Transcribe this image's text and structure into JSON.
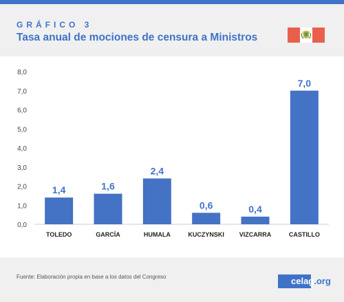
{
  "header": {
    "kicker": "GRÁFICO 3",
    "title": "Tasa anual de mociones de censura a Ministros"
  },
  "footer": {
    "source": "Fuente: Elaboración propia en base a los datos del Congreso",
    "logo_part1": "celag",
    "logo_part2": ".org"
  },
  "icons": {
    "flag": "peru-flag-icon"
  },
  "colors": {
    "accent": "#3f73c8",
    "bar": "#4472c4",
    "panel": "#f0f0f0"
  },
  "chart_data": {
    "type": "bar",
    "categories": [
      "TOLEDO",
      "GARCÍA",
      "HUMALA",
      "KUCZYNSKI",
      "VIZCARRA",
      "CASTILLO"
    ],
    "values": [
      1.4,
      1.6,
      2.4,
      0.6,
      0.4,
      7.0
    ],
    "data_labels": [
      "1,4",
      "1,6",
      "2,4",
      "0,6",
      "0,4",
      "7,0"
    ],
    "yticks": [
      "0,0",
      "1,0",
      "2,0",
      "3,0",
      "4,0",
      "5,0",
      "6,0",
      "7,0",
      "8,0"
    ],
    "ylim": [
      0,
      8
    ],
    "grid": false,
    "title": "",
    "xlabel": "",
    "ylabel": ""
  }
}
